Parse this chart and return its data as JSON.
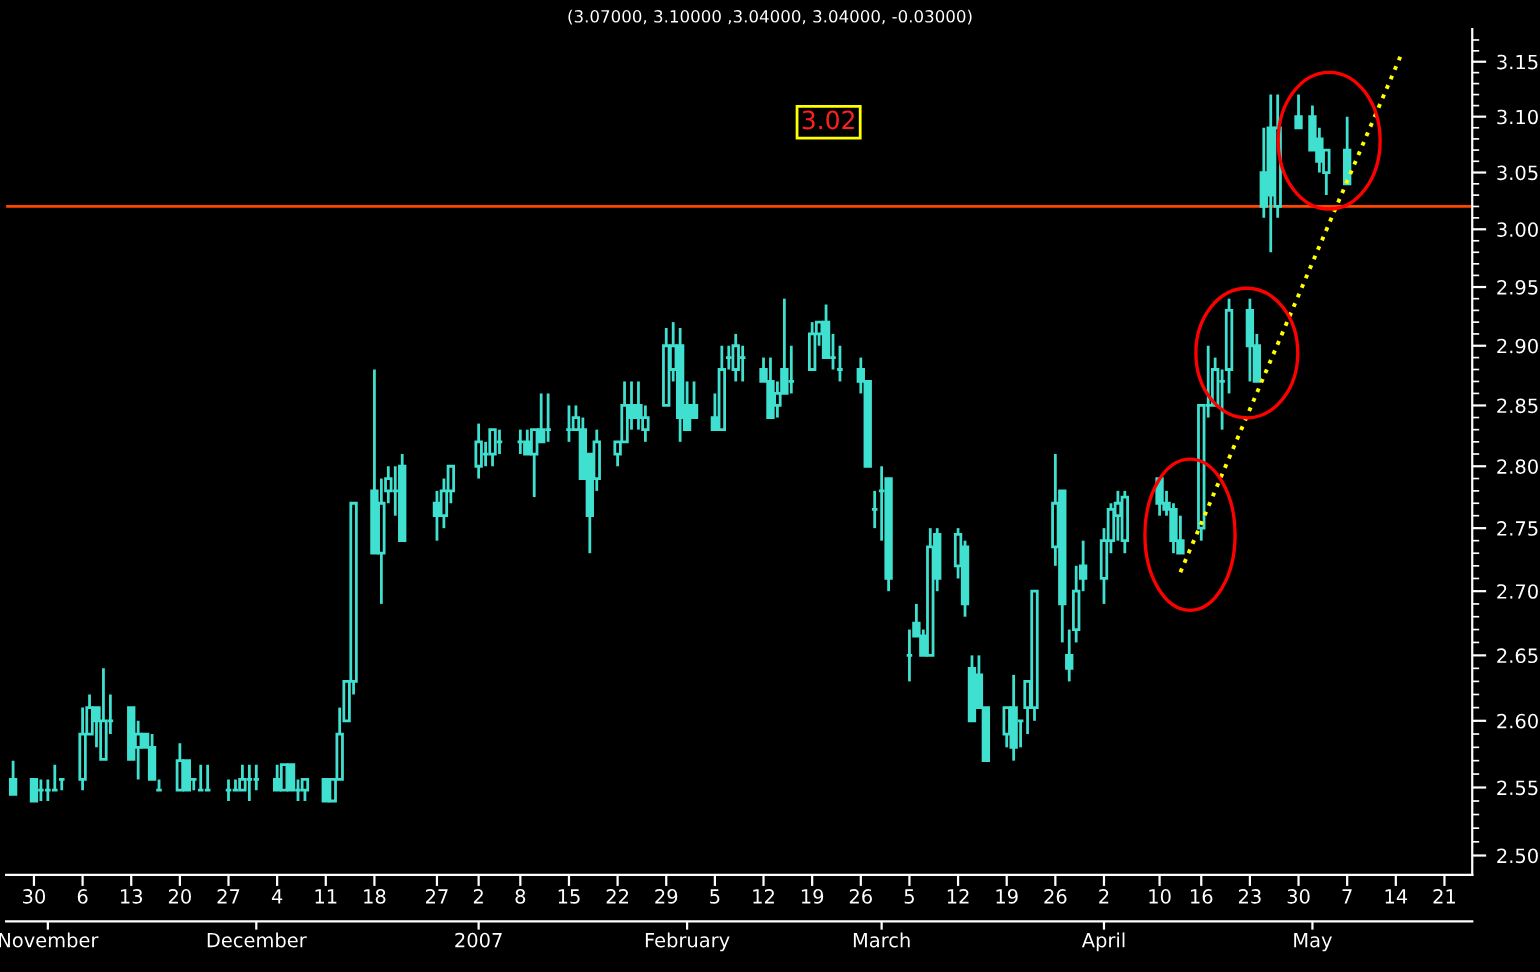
{
  "chart_data": {
    "type": "candlestick",
    "title": "(3.07000, 3.10000 ,3.04000, 3.04000, -0.03000)",
    "color": "#40e0d0",
    "log": true,
    "x": [
      "2006-10-27",
      "2006-10-30",
      "2006-10-31",
      "2006-11-01",
      "2006-11-02",
      "2006-11-03",
      "2006-11-06",
      "2006-11-07",
      "2006-11-08",
      "2006-11-09",
      "2006-11-10",
      "2006-11-13",
      "2006-11-14",
      "2006-11-15",
      "2006-11-16",
      "2006-11-17",
      "2006-11-20",
      "2006-11-21",
      "2006-11-22",
      "2006-11-23",
      "2006-11-24",
      "2006-11-27",
      "2006-11-28",
      "2006-11-29",
      "2006-11-30",
      "2006-12-01",
      "2006-12-04",
      "2006-12-05",
      "2006-12-06",
      "2006-12-07",
      "2006-12-08",
      "2006-12-11",
      "2006-12-12",
      "2006-12-13",
      "2006-12-14",
      "2006-12-15",
      "2006-12-18",
      "2006-12-19",
      "2006-12-20",
      "2006-12-21",
      "2006-12-22",
      "2006-12-27",
      "2006-12-28",
      "2006-12-29",
      "2007-01-02",
      "2007-01-03",
      "2007-01-04",
      "2007-01-05",
      "2007-01-08",
      "2007-01-09",
      "2007-01-10",
      "2007-01-11",
      "2007-01-12",
      "2007-01-15",
      "2007-01-16",
      "2007-01-17",
      "2007-01-18",
      "2007-01-19",
      "2007-01-22",
      "2007-01-23",
      "2007-01-24",
      "2007-01-25",
      "2007-01-26",
      "2007-01-29",
      "2007-01-30",
      "2007-01-31",
      "2007-02-01",
      "2007-02-02",
      "2007-02-05",
      "2007-02-06",
      "2007-02-07",
      "2007-02-08",
      "2007-02-09",
      "2007-02-12",
      "2007-02-13",
      "2007-02-14",
      "2007-02-15",
      "2007-02-16",
      "2007-02-19",
      "2007-02-20",
      "2007-02-21",
      "2007-02-22",
      "2007-02-23",
      "2007-02-26",
      "2007-02-27",
      "2007-02-28",
      "2007-03-01",
      "2007-03-02",
      "2007-03-05",
      "2007-03-06",
      "2007-03-07",
      "2007-03-08",
      "2007-03-09",
      "2007-03-12",
      "2007-03-13",
      "2007-03-14",
      "2007-03-15",
      "2007-03-16",
      "2007-03-19",
      "2007-03-20",
      "2007-03-21",
      "2007-03-22",
      "2007-03-23",
      "2007-03-26",
      "2007-03-27",
      "2007-03-28",
      "2007-03-29",
      "2007-03-30",
      "2007-04-02",
      "2007-04-03",
      "2007-04-04",
      "2007-04-05",
      "2007-04-10",
      "2007-04-11",
      "2007-04-12",
      "2007-04-13",
      "2007-04-16",
      "2007-04-17",
      "2007-04-18",
      "2007-04-19",
      "2007-04-20",
      "2007-04-23",
      "2007-04-24",
      "2007-04-25",
      "2007-04-26",
      "2007-04-27",
      "2007-04-30",
      "2007-05-02",
      "2007-05-03",
      "2007-05-04",
      "2007-05-07"
    ],
    "ohlc": [
      [
        2.556,
        2.57,
        2.545,
        2.545
      ],
      [
        2.556,
        2.556,
        2.54,
        2.54
      ],
      [
        2.548,
        2.556,
        2.54,
        2.548
      ],
      [
        2.548,
        2.556,
        2.54,
        2.548
      ],
      [
        2.548,
        2.567,
        2.548,
        2.548
      ],
      [
        2.556,
        2.556,
        2.548,
        2.556
      ],
      [
        2.556,
        2.61,
        2.548,
        2.59
      ],
      [
        2.59,
        2.62,
        2.59,
        2.61
      ],
      [
        2.61,
        2.61,
        2.58,
        2.6
      ],
      [
        2.571,
        2.64,
        2.571,
        2.6
      ],
      [
        2.6,
        2.62,
        2.59,
        2.6
      ],
      [
        2.61,
        2.61,
        2.571,
        2.571
      ],
      [
        2.58,
        2.6,
        2.556,
        2.59
      ],
      [
        2.59,
        2.59,
        2.58,
        2.58
      ],
      [
        2.58,
        2.59,
        2.556,
        2.556
      ],
      [
        2.548,
        2.556,
        2.548,
        2.548
      ],
      [
        2.548,
        2.583,
        2.548,
        2.57
      ],
      [
        2.57,
        2.57,
        2.548,
        2.548
      ],
      [
        2.556,
        2.556,
        2.548,
        2.556
      ],
      [
        2.548,
        2.567,
        2.548,
        2.548
      ],
      [
        2.548,
        2.567,
        2.548,
        2.548
      ],
      [
        2.548,
        2.556,
        2.54,
        2.548
      ],
      [
        2.548,
        2.556,
        2.548,
        2.548
      ],
      [
        2.548,
        2.567,
        2.548,
        2.556
      ],
      [
        2.556,
        2.567,
        2.54,
        2.556
      ],
      [
        2.556,
        2.567,
        2.548,
        2.556
      ],
      [
        2.556,
        2.567,
        2.548,
        2.548
      ],
      [
        2.548,
        2.567,
        2.548,
        2.567
      ],
      [
        2.567,
        2.567,
        2.548,
        2.548
      ],
      [
        2.548,
        2.556,
        2.54,
        2.548
      ],
      [
        2.548,
        2.556,
        2.54,
        2.556
      ],
      [
        2.556,
        2.556,
        2.54,
        2.54
      ],
      [
        2.54,
        2.556,
        2.54,
        2.556
      ],
      [
        2.556,
        2.61,
        2.556,
        2.59
      ],
      [
        2.6,
        2.63,
        2.6,
        2.63
      ],
      [
        2.63,
        2.77,
        2.62,
        2.77
      ],
      [
        2.78,
        2.88,
        2.73,
        2.73
      ],
      [
        2.73,
        2.79,
        2.69,
        2.77
      ],
      [
        2.78,
        2.8,
        2.77,
        2.79
      ],
      [
        2.78,
        2.8,
        2.76,
        2.78
      ],
      [
        2.8,
        2.81,
        2.74,
        2.74
      ],
      [
        2.77,
        2.78,
        2.74,
        2.76
      ],
      [
        2.76,
        2.79,
        2.75,
        2.78
      ],
      [
        2.78,
        2.8,
        2.77,
        2.8
      ],
      [
        2.8,
        2.835,
        2.79,
        2.82
      ],
      [
        2.81,
        2.82,
        2.8,
        2.81
      ],
      [
        2.81,
        2.83,
        2.8,
        2.83
      ],
      [
        2.82,
        2.83,
        2.81,
        2.82
      ],
      [
        2.82,
        2.83,
        2.81,
        2.82
      ],
      [
        2.82,
        2.83,
        2.81,
        2.81
      ],
      [
        2.81,
        2.83,
        2.775,
        2.83
      ],
      [
        2.83,
        2.86,
        2.82,
        2.82
      ],
      [
        2.83,
        2.86,
        2.82,
        2.83
      ],
      [
        2.83,
        2.85,
        2.82,
        2.83
      ],
      [
        2.83,
        2.85,
        2.83,
        2.84
      ],
      [
        2.83,
        2.84,
        2.79,
        2.79
      ],
      [
        2.81,
        2.81,
        2.73,
        2.76
      ],
      [
        2.79,
        2.83,
        2.78,
        2.82
      ],
      [
        2.81,
        2.82,
        2.8,
        2.82
      ],
      [
        2.82,
        2.87,
        2.82,
        2.85
      ],
      [
        2.85,
        2.87,
        2.83,
        2.84
      ],
      [
        2.85,
        2.87,
        2.83,
        2.84
      ],
      [
        2.83,
        2.85,
        2.82,
        2.84
      ],
      [
        2.85,
        2.915,
        2.85,
        2.9
      ],
      [
        2.88,
        2.92,
        2.87,
        2.9
      ],
      [
        2.9,
        2.915,
        2.82,
        2.84
      ],
      [
        2.85,
        2.87,
        2.83,
        2.83
      ],
      [
        2.85,
        2.87,
        2.84,
        2.84
      ],
      [
        2.84,
        2.86,
        2.83,
        2.83
      ],
      [
        2.83,
        2.9,
        2.83,
        2.88
      ],
      [
        2.89,
        2.9,
        2.88,
        2.89
      ],
      [
        2.88,
        2.91,
        2.87,
        2.9
      ],
      [
        2.89,
        2.9,
        2.87,
        2.89
      ],
      [
        2.88,
        2.89,
        2.87,
        2.87
      ],
      [
        2.87,
        2.89,
        2.84,
        2.84
      ],
      [
        2.85,
        2.87,
        2.84,
        2.86
      ],
      [
        2.88,
        2.94,
        2.86,
        2.86
      ],
      [
        2.87,
        2.9,
        2.86,
        2.87
      ],
      [
        2.88,
        2.92,
        2.88,
        2.91
      ],
      [
        2.91,
        2.92,
        2.9,
        2.92
      ],
      [
        2.92,
        2.935,
        2.89,
        2.89
      ],
      [
        2.89,
        2.91,
        2.88,
        2.89
      ],
      [
        2.88,
        2.9,
        2.87,
        2.88
      ],
      [
        2.88,
        2.89,
        2.86,
        2.87
      ],
      [
        2.87,
        2.87,
        2.8,
        2.8
      ],
      [
        2.765,
        2.78,
        2.75,
        2.765
      ],
      [
        2.78,
        2.8,
        2.74,
        2.78
      ],
      [
        2.79,
        2.79,
        2.7,
        2.71
      ],
      [
        2.65,
        2.67,
        2.63,
        2.65
      ],
      [
        2.675,
        2.69,
        2.665,
        2.665
      ],
      [
        2.665,
        2.67,
        2.65,
        2.65
      ],
      [
        2.65,
        2.75,
        2.65,
        2.735
      ],
      [
        2.745,
        2.75,
        2.7,
        2.71
      ],
      [
        2.72,
        2.75,
        2.71,
        2.745
      ],
      [
        2.735,
        2.74,
        2.68,
        2.69
      ],
      [
        2.64,
        2.65,
        2.6,
        2.6
      ],
      [
        2.635,
        2.65,
        2.61,
        2.61
      ],
      [
        2.61,
        2.61,
        2.57,
        2.57
      ],
      [
        2.59,
        2.61,
        2.58,
        2.61
      ],
      [
        2.61,
        2.635,
        2.57,
        2.58
      ],
      [
        2.6,
        2.6,
        2.58,
        2.6
      ],
      [
        2.61,
        2.63,
        2.59,
        2.63
      ],
      [
        2.61,
        2.7,
        2.6,
        2.7
      ],
      [
        2.735,
        2.81,
        2.72,
        2.77
      ],
      [
        2.78,
        2.78,
        2.66,
        2.69
      ],
      [
        2.65,
        2.67,
        2.63,
        2.64
      ],
      [
        2.67,
        2.72,
        2.66,
        2.7
      ],
      [
        2.72,
        2.74,
        2.7,
        2.71
      ],
      [
        2.71,
        2.75,
        2.69,
        2.74
      ],
      [
        2.74,
        2.77,
        2.73,
        2.765
      ],
      [
        2.76,
        2.78,
        2.74,
        2.77
      ],
      [
        2.74,
        2.78,
        2.73,
        2.775
      ],
      [
        2.79,
        2.79,
        2.76,
        2.77
      ],
      [
        2.77,
        2.78,
        2.76,
        2.765
      ],
      [
        2.765,
        2.77,
        2.73,
        2.74
      ],
      [
        2.74,
        2.76,
        2.73,
        2.73
      ],
      [
        2.75,
        2.85,
        2.74,
        2.85
      ],
      [
        2.85,
        2.9,
        2.84,
        2.85
      ],
      [
        2.85,
        2.89,
        2.85,
        2.88
      ],
      [
        2.87,
        2.88,
        2.83,
        2.87
      ],
      [
        2.88,
        2.94,
        2.86,
        2.93
      ],
      [
        2.93,
        2.94,
        2.87,
        2.9
      ],
      [
        2.9,
        2.91,
        2.87,
        2.87
      ],
      [
        3.05,
        3.09,
        3.01,
        3.02
      ],
      [
        3.09,
        3.12,
        2.98,
        3.03
      ],
      [
        3.02,
        3.12,
        3.01,
        3.09
      ],
      [
        3.1,
        3.12,
        3.09,
        3.09
      ],
      [
        3.1,
        3.11,
        3.07,
        3.07
      ],
      [
        3.08,
        3.09,
        3.05,
        3.06
      ],
      [
        3.05,
        3.07,
        3.03,
        3.07
      ],
      [
        3.07,
        3.1,
        3.04,
        3.04
      ]
    ],
    "series": [
      {
        "type": "line",
        "x": [
          "2007-04-13",
          "2007-05-15"
        ],
        "values": [
          2.715,
          3.16
        ],
        "color": "#ffff00",
        "line_style": "dotted"
      }
    ],
    "ref_lines": [
      {
        "axis": "y",
        "value": 3.02,
        "label": "3.02",
        "color": "#ff4500"
      }
    ],
    "ylim": [
      2.486,
      3.18
    ],
    "yticks": [
      {
        "value": 2.5,
        "label": "2.50"
      },
      {
        "value": 2.55,
        "label": "2.55"
      },
      {
        "value": 2.6,
        "label": "2.60"
      },
      {
        "value": 2.65,
        "label": "2.65"
      },
      {
        "value": 2.7,
        "label": "2.70"
      },
      {
        "value": 2.75,
        "label": "2.75"
      },
      {
        "value": 2.8,
        "label": "2.80"
      },
      {
        "value": 2.85,
        "label": "2.85"
      },
      {
        "value": 2.9,
        "label": "2.90"
      },
      {
        "value": 2.95,
        "label": "2.95"
      },
      {
        "value": 3.0,
        "label": "3.00"
      },
      {
        "value": 3.05,
        "label": "3.05"
      },
      {
        "value": 3.1,
        "label": "3.10"
      },
      {
        "value": 3.15,
        "label": "3.15"
      },
      {
        "value": 2.51,
        "label": null
      },
      {
        "value": 2.52,
        "label": null
      },
      {
        "value": 2.53,
        "label": null
      },
      {
        "value": 2.54,
        "label": null
      },
      {
        "value": 2.56,
        "label": null
      },
      {
        "value": 2.57,
        "label": null
      },
      {
        "value": 2.58,
        "label": null
      },
      {
        "value": 2.59,
        "label": null
      },
      {
        "value": 2.61,
        "label": null
      },
      {
        "value": 2.62,
        "label": null
      },
      {
        "value": 2.63,
        "label": null
      },
      {
        "value": 2.64,
        "label": null
      },
      {
        "value": 2.66,
        "label": null
      },
      {
        "value": 2.67,
        "label": null
      },
      {
        "value": 2.68,
        "label": null
      },
      {
        "value": 2.69,
        "label": null
      },
      {
        "value": 2.71,
        "label": null
      },
      {
        "value": 2.72,
        "label": null
      },
      {
        "value": 2.73,
        "label": null
      },
      {
        "value": 2.74,
        "label": null
      },
      {
        "value": 2.76,
        "label": null
      },
      {
        "value": 2.77,
        "label": null
      },
      {
        "value": 2.78,
        "label": null
      },
      {
        "value": 2.79,
        "label": null
      },
      {
        "value": 2.81,
        "label": null
      },
      {
        "value": 2.82,
        "label": null
      },
      {
        "value": 2.83,
        "label": null
      },
      {
        "value": 2.84,
        "label": null
      },
      {
        "value": 2.86,
        "label": null
      },
      {
        "value": 2.87,
        "label": null
      },
      {
        "value": 2.88,
        "label": null
      },
      {
        "value": 2.89,
        "label": null
      },
      {
        "value": 2.91,
        "label": null
      },
      {
        "value": 2.92,
        "label": null
      },
      {
        "value": 2.93,
        "label": null
      },
      {
        "value": 2.94,
        "label": null
      },
      {
        "value": 2.96,
        "label": null
      },
      {
        "value": 2.97,
        "label": null
      },
      {
        "value": 2.98,
        "label": null
      },
      {
        "value": 2.99,
        "label": null
      },
      {
        "value": 3.01,
        "label": null
      },
      {
        "value": 3.02,
        "label": null
      },
      {
        "value": 3.03,
        "label": null
      },
      {
        "value": 3.04,
        "label": null
      },
      {
        "value": 3.06,
        "label": null
      },
      {
        "value": 3.07,
        "label": null
      },
      {
        "value": 3.08,
        "label": null
      },
      {
        "value": 3.09,
        "label": null
      },
      {
        "value": 3.11,
        "label": null
      },
      {
        "value": 3.12,
        "label": null
      },
      {
        "value": 3.13,
        "label": null
      },
      {
        "value": 3.14,
        "label": null
      },
      {
        "value": 3.16,
        "label": null
      },
      {
        "value": 3.17,
        "label": null
      }
    ],
    "xlim": [
      "2006-10-26",
      "2007-05-25"
    ],
    "xticks": [
      {
        "value": "2006-10-30",
        "label": "30"
      },
      {
        "value": "2006-11-06",
        "label": "6"
      },
      {
        "value": "2006-11-13",
        "label": "13"
      },
      {
        "value": "2006-11-20",
        "label": "20"
      },
      {
        "value": "2006-11-27",
        "label": "27"
      },
      {
        "value": "2006-12-04",
        "label": "4"
      },
      {
        "value": "2006-12-11",
        "label": "11"
      },
      {
        "value": "2006-12-18",
        "label": "18"
      },
      {
        "value": "2006-12-27",
        "label": "27"
      },
      {
        "value": "2007-01-02",
        "label": "2"
      },
      {
        "value": "2007-01-08",
        "label": "8"
      },
      {
        "value": "2007-01-15",
        "label": "15"
      },
      {
        "value": "2007-01-22",
        "label": "22"
      },
      {
        "value": "2007-01-29",
        "label": "29"
      },
      {
        "value": "2007-02-05",
        "label": "5"
      },
      {
        "value": "2007-02-12",
        "label": "12"
      },
      {
        "value": "2007-02-19",
        "label": "19"
      },
      {
        "value": "2007-02-26",
        "label": "26"
      },
      {
        "value": "2007-03-05",
        "label": "5"
      },
      {
        "value": "2007-03-12",
        "label": "12"
      },
      {
        "value": "2007-03-19",
        "label": "19"
      },
      {
        "value": "2007-03-26",
        "label": "26"
      },
      {
        "value": "2007-04-02",
        "label": "2"
      },
      {
        "value": "2007-04-10",
        "label": "10"
      },
      {
        "value": "2007-04-16",
        "label": "16"
      },
      {
        "value": "2007-04-23",
        "label": "23"
      },
      {
        "value": "2007-04-30",
        "label": "30"
      },
      {
        "value": "2007-05-07",
        "label": "7"
      },
      {
        "value": "2007-05-14",
        "label": "14"
      },
      {
        "value": "2007-05-21",
        "label": "21"
      }
    ],
    "x2lim": [
      "2006-10-26",
      "2007-05-25"
    ],
    "x2ticks": [
      {
        "value": "2006-11-01",
        "label": "November"
      },
      {
        "value": "2006-12-01",
        "label": "December"
      },
      {
        "value": "2007-01-02",
        "label": "2007"
      },
      {
        "value": "2007-02-01",
        "label": "February"
      },
      {
        "value": "2007-03-01",
        "label": "March"
      },
      {
        "value": "2007-04-02",
        "label": "April"
      },
      {
        "value": "2007-05-02",
        "label": "May"
      }
    ]
  }
}
